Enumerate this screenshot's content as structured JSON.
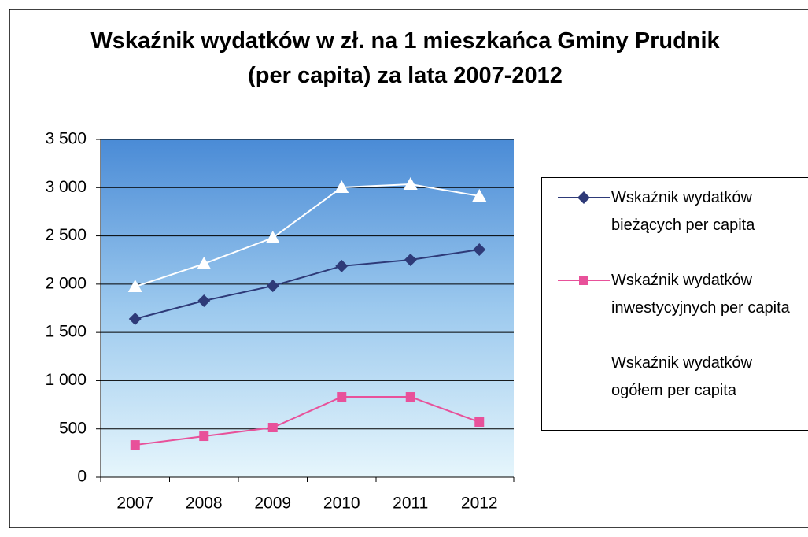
{
  "chart_data": {
    "type": "line",
    "title": "Wskaźnik wydatków w zł. na 1 mieszkańca Gminy Prudnik (per capita) za lata 2007-2012",
    "categories": [
      "2007",
      "2008",
      "2009",
      "2010",
      "2011",
      "2012"
    ],
    "series": [
      {
        "name": "Wskaźnik wydatków bieżących per capita",
        "color": "#2e3a78",
        "marker": "diamond",
        "values": [
          1640,
          1828,
          1982,
          2187,
          2252,
          2358
        ]
      },
      {
        "name": "Wskaźnik wydatków inwestycyjnych per capita",
        "color": "#e8519a",
        "marker": "square",
        "values": [
          334,
          424,
          514,
          832,
          832,
          571
        ]
      },
      {
        "name": "Wskaźnik wydatków ogółem per capita",
        "color": "#ffffff",
        "marker": "triangle",
        "values": [
          1974,
          2211,
          2480,
          3002,
          3035,
          2913
        ]
      }
    ],
    "ylim": [
      0,
      3500
    ],
    "yticks": [
      0,
      500,
      {
        "value": 1000,
        "label": "1 000"
      },
      {
        "value": 1500,
        "label": "1 500"
      },
      {
        "value": 2000,
        "label": "2 000"
      },
      {
        "value": 2500,
        "label": "2 500"
      },
      {
        "value": 3000,
        "label": "3 000"
      },
      {
        "value": 3500,
        "label": "3 500"
      }
    ],
    "grid": true,
    "legend": "right"
  }
}
